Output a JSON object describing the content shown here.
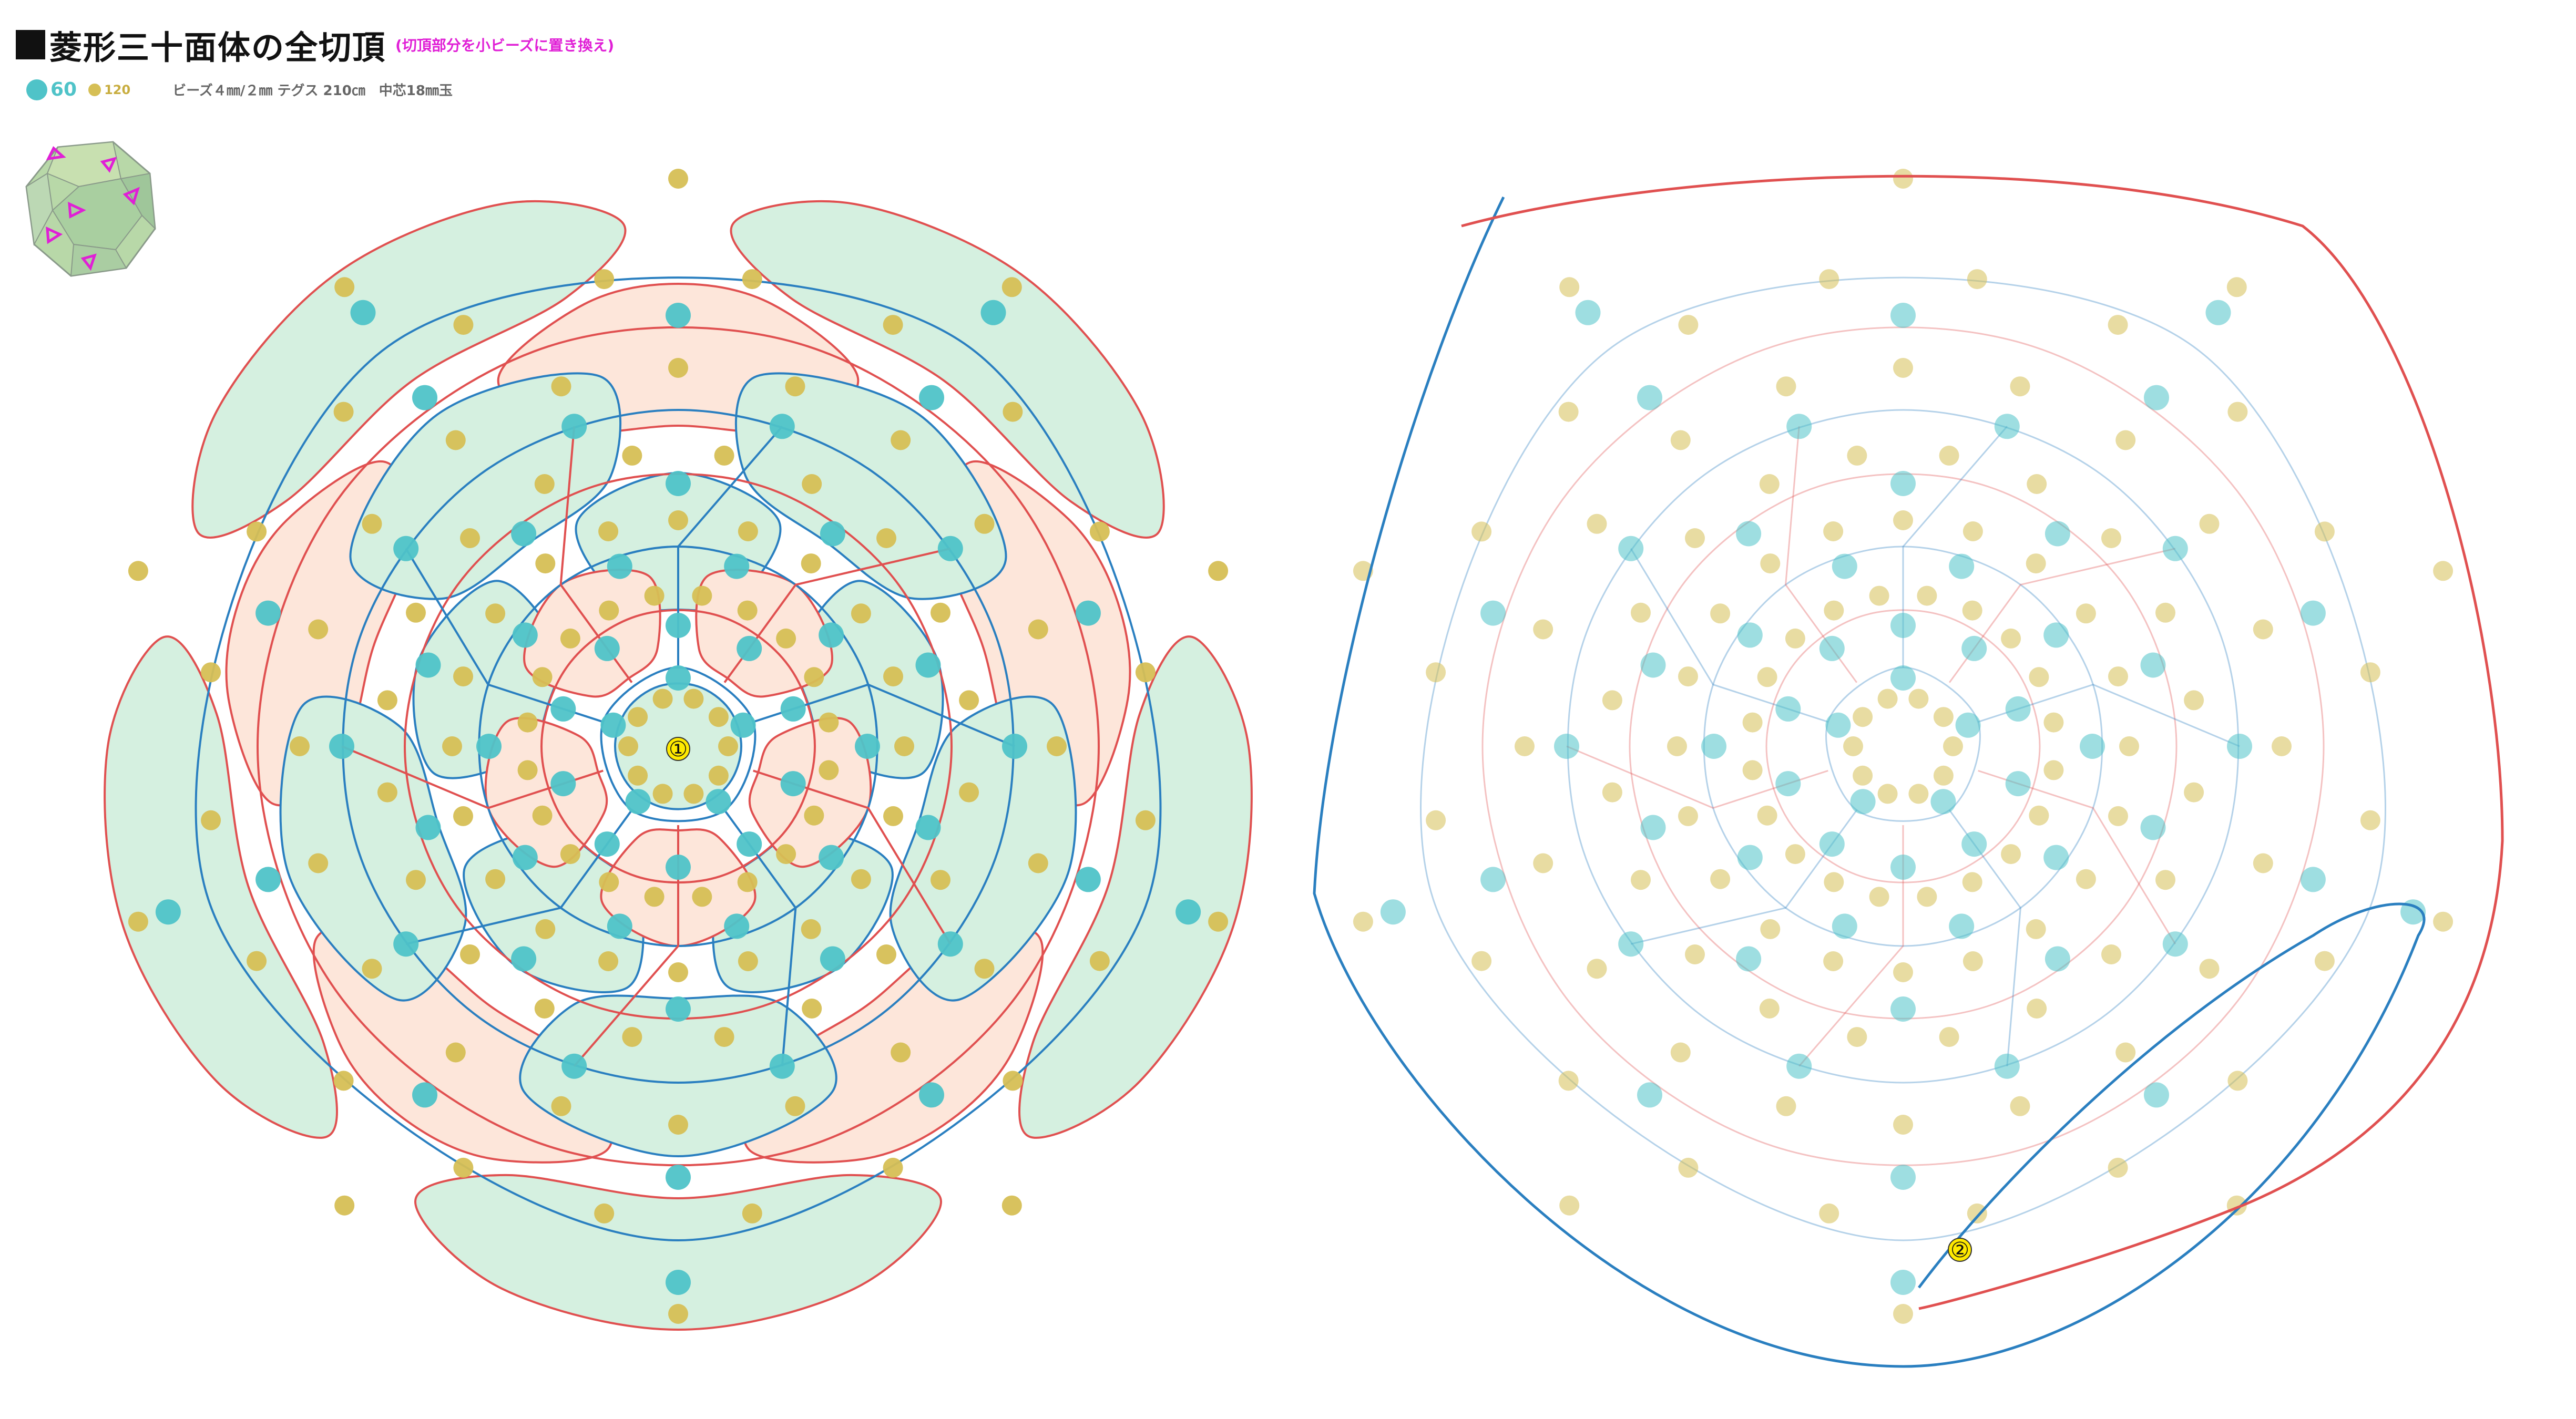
{
  "title": "菱形三十面体の全切頂",
  "subtitle": "(切頂部分を小ビーズに置き換え)",
  "legend": {
    "large_count": "60",
    "small_count": "120",
    "large_color": "#4fc3c8",
    "small_color": "#d6bf55"
  },
  "materials": "ビーズ４㎜/２㎜ テグス 210㎝　中芯18㎜玉",
  "colors": {
    "green_fill": "#d5f0e0",
    "peach_fill": "#fde6da",
    "red_thread": "#e05050",
    "blue_thread": "#2a7fc0"
  },
  "markers": [
    {
      "label": "①"
    },
    {
      "label": "②"
    }
  ],
  "icons": {
    "polyhedron": "polyhedron-icon"
  }
}
